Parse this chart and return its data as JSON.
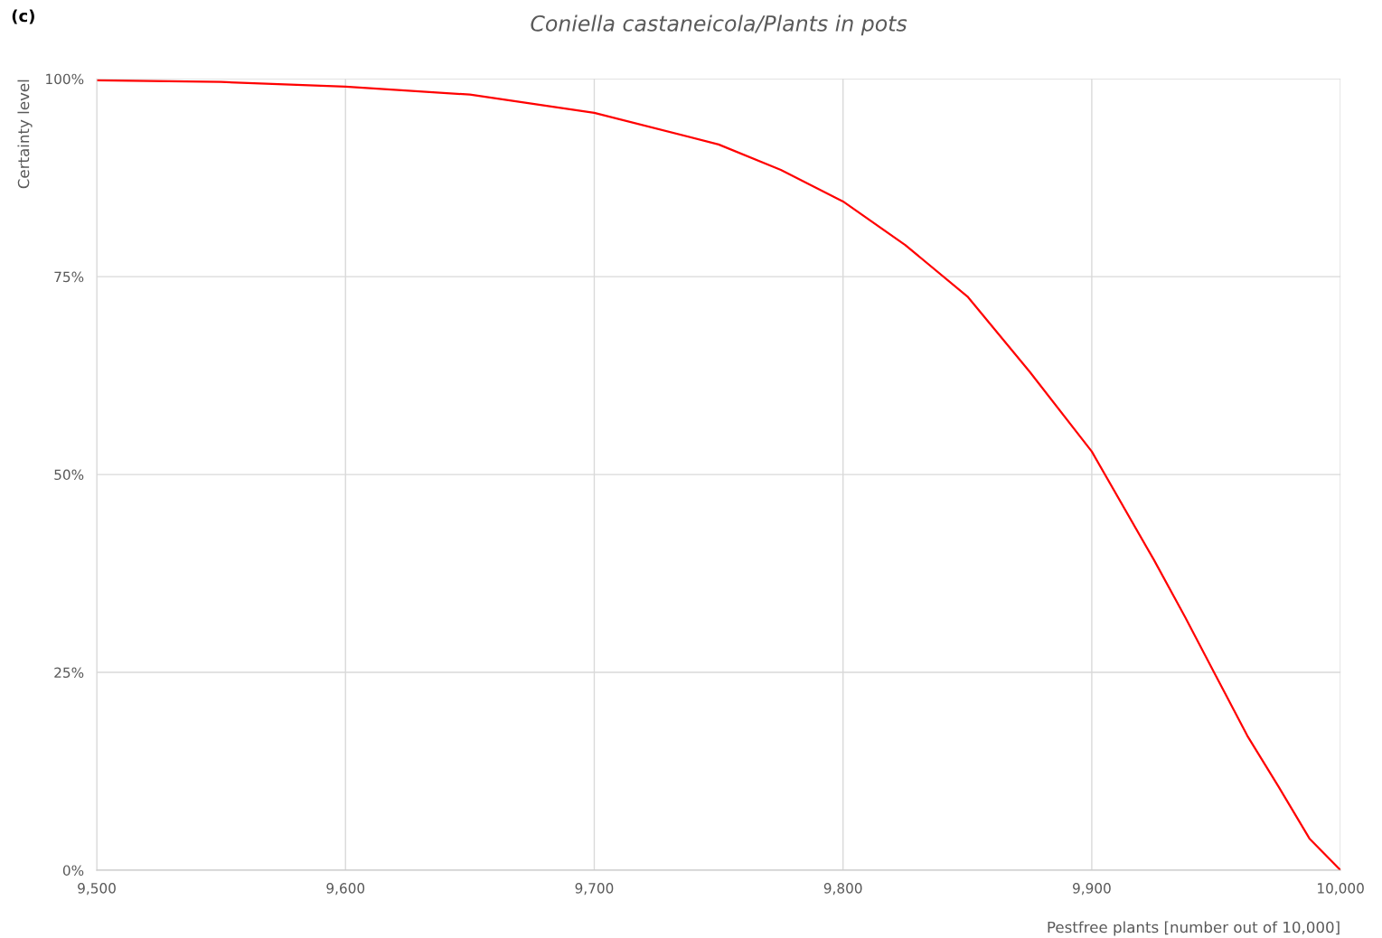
{
  "chart_data": {
    "type": "line",
    "title": "Coniella castaneicola/Plants in pots",
    "xlabel": "Pestfree plants [number out of 10,000]",
    "ylabel": "Certainty level",
    "annotations": [
      "(c)"
    ],
    "x": [
      9500,
      9550,
      9600,
      9650,
      9700,
      9750,
      9775,
      9800,
      9825,
      9850,
      9875,
      9900,
      9925,
      9937.5,
      9950,
      9962.5,
      9975,
      9987.5,
      10000
    ],
    "series": [
      {
        "color": "#ff0000",
        "values": [
          99.8,
          99.6,
          99.0,
          98.0,
          95.7,
          91.7,
          88.5,
          84.5,
          79.0,
          72.5,
          63.0,
          52.9,
          39.2,
          32.0,
          24.5,
          17.0,
          10.6,
          4.0,
          0
        ]
      }
    ],
    "xlim": [
      9500,
      10000
    ],
    "xticks": [
      {
        "value": 9500,
        "label": "9,500"
      },
      {
        "value": 9600,
        "label": "9,600"
      },
      {
        "value": 9700,
        "label": "9,700"
      },
      {
        "value": 9800,
        "label": "9,800"
      },
      {
        "value": 9900,
        "label": "9,900"
      },
      {
        "value": 10000,
        "label": "10,000"
      }
    ],
    "ylim": [
      0,
      100
    ],
    "yticks": [
      {
        "value": 0,
        "label": "0%"
      },
      {
        "value": 25,
        "label": "25%"
      },
      {
        "value": 50,
        "label": "50%"
      },
      {
        "value": 75,
        "label": "75%"
      },
      {
        "value": 100,
        "label": "100%"
      }
    ],
    "grid": true,
    "marker": "none",
    "line_style": "solid"
  }
}
